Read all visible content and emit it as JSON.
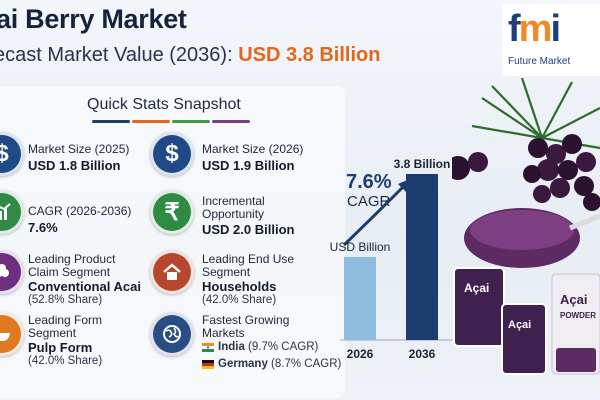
{
  "header": {
    "title": "ai Berry Market",
    "subtitle_prefix": "ecast Market Value (2036): ",
    "subtitle_value": "USD 3.8 Billion"
  },
  "logo": {
    "mark_f": "f",
    "mark_m": "m",
    "mark_i": "i",
    "text": "Future Market"
  },
  "quick_stats": {
    "title": "Quick Stats Snapshot",
    "items": [
      {
        "label": "Market Size (2025)",
        "value": "USD 1.8 Billion",
        "icon": "dollar-icon"
      },
      {
        "label": "Market Size (2026)",
        "value": "USD 1.9 Billion",
        "icon": "dollar-icon"
      },
      {
        "label": "CAGR (2026-2036)",
        "value": "7.6%",
        "icon": "growth-chart-icon"
      },
      {
        "label": "Incremental",
        "label2": "Opportunity",
        "value": "USD 2.0 Billion",
        "icon": "hand-rupee-icon"
      },
      {
        "label": "Leading Product",
        "label2": "Claim Segment",
        "value": "Conventional Acai",
        "note": "(52.8% Share)",
        "icon": "berry-icon"
      },
      {
        "label": "Leading End Use",
        "label2": "Segment",
        "value": "Households",
        "note": "(42.0% Share)",
        "icon": "house-icon"
      },
      {
        "label": "Leading Form",
        "label2": "Segment",
        "value": "Pulp Form",
        "note": "(42.0% Share)",
        "icon": "bowl-icon"
      },
      {
        "label": "Fastest Growing",
        "label2": "Markets",
        "icon": "globe-icon",
        "markets": [
          {
            "country": "India",
            "note": " (9.7% CAGR)"
          },
          {
            "country": "Germany",
            "note": " (8.7% CAGR)"
          }
        ]
      }
    ]
  },
  "chart_data": {
    "type": "bar",
    "categories": [
      "2026",
      "2036"
    ],
    "values": [
      1.9,
      3.8
    ],
    "data_labels": [
      "USD Billion",
      "3.8 Billion"
    ],
    "annotation": {
      "value": "7.6%",
      "label": "CAGR"
    },
    "colors": [
      "#8fbde0",
      "#1d3d6e"
    ]
  },
  "decoration": {
    "pack_labels": [
      "Açai",
      "Açai",
      "Açai"
    ],
    "pack_sub": "POWDER"
  },
  "colors": {
    "accent_orange": "#e2661d",
    "navy": "#1d3d6e",
    "light_blue": "#8fbde0",
    "berry": "#3a1840"
  }
}
